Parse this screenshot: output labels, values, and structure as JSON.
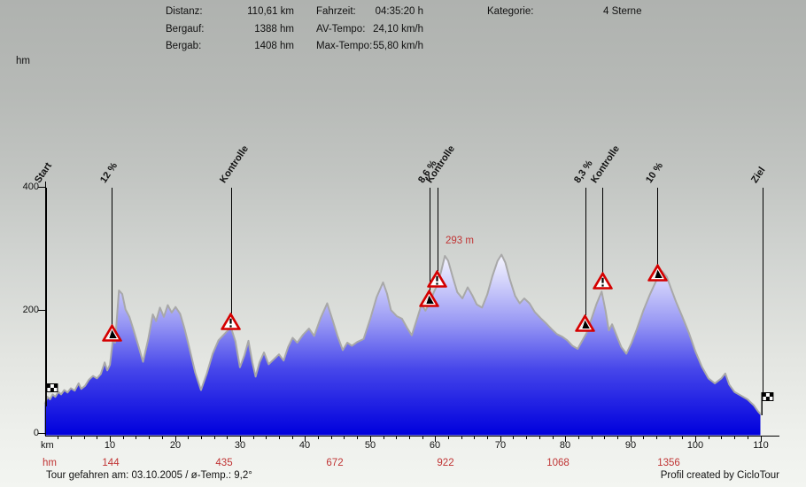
{
  "header": {
    "col1": [
      {
        "label": "Distanz:",
        "value": "110,61 km"
      },
      {
        "label": "Bergauf:",
        "value": "1388 hm"
      },
      {
        "label": "Bergab:",
        "value": "1408 hm"
      }
    ],
    "col2": [
      {
        "label": "Fahrzeit:",
        "value": "04:35:20 h"
      },
      {
        "label": "AV-Tempo:",
        "value": "24,10 km/h"
      },
      {
        "label": "Max-Tempo:",
        "value": "55,80 km/h"
      }
    ],
    "col3": [
      {
        "label": "Kategorie:",
        "value": "4 Sterne"
      }
    ]
  },
  "chart_data": {
    "type": "area",
    "title": "",
    "x_unit": "km",
    "y_unit": "hm",
    "xlim": [
      0,
      110
    ],
    "ylim": [
      0,
      400
    ],
    "y_ticks": [
      0,
      200,
      400
    ],
    "x_major_ticks": [
      10,
      20,
      30,
      40,
      50,
      60,
      70,
      80,
      90,
      100,
      110
    ],
    "x_minor_tick_step": 2,
    "series_name": "elevation-profile",
    "profile_points": [
      [
        0,
        46
      ],
      [
        0.4,
        58
      ],
      [
        0.8,
        54
      ],
      [
        1.2,
        62
      ],
      [
        1.6,
        58
      ],
      [
        2.1,
        66
      ],
      [
        2.5,
        62
      ],
      [
        3,
        69
      ],
      [
        3.5,
        65
      ],
      [
        4,
        72
      ],
      [
        4.6,
        68
      ],
      [
        5.2,
        80
      ],
      [
        5.6,
        71
      ],
      [
        6.2,
        76
      ],
      [
        6.8,
        86
      ],
      [
        7.4,
        92
      ],
      [
        8,
        88
      ],
      [
        8.6,
        95
      ],
      [
        9.2,
        114
      ],
      [
        9.6,
        101
      ],
      [
        10,
        110
      ],
      [
        10.45,
        150
      ],
      [
        10.8,
        146
      ],
      [
        11.4,
        231
      ],
      [
        11.9,
        225
      ],
      [
        12.4,
        200
      ],
      [
        13,
        188
      ],
      [
        13.6,
        168
      ],
      [
        14.4,
        140
      ],
      [
        15.1,
        115
      ],
      [
        15.9,
        152
      ],
      [
        16.6,
        192
      ],
      [
        17.1,
        181
      ],
      [
        17.7,
        203
      ],
      [
        18.3,
        188
      ],
      [
        18.9,
        207
      ],
      [
        19.5,
        195
      ],
      [
        20.1,
        204
      ],
      [
        20.8,
        193
      ],
      [
        21.5,
        168
      ],
      [
        22.2,
        138
      ],
      [
        23.1,
        98
      ],
      [
        24,
        69
      ],
      [
        24.9,
        96
      ],
      [
        25.8,
        128
      ],
      [
        26.7,
        150
      ],
      [
        27.6,
        160
      ],
      [
        28.6,
        171
      ],
      [
        29.3,
        148
      ],
      [
        30,
        106
      ],
      [
        30.7,
        126
      ],
      [
        31.3,
        149
      ],
      [
        31.9,
        114
      ],
      [
        32.4,
        91
      ],
      [
        33,
        114
      ],
      [
        33.7,
        130
      ],
      [
        34.4,
        111
      ],
      [
        35.2,
        119
      ],
      [
        36,
        127
      ],
      [
        36.7,
        117
      ],
      [
        37.4,
        139
      ],
      [
        38.1,
        154
      ],
      [
        38.8,
        146
      ],
      [
        39.7,
        159
      ],
      [
        40.6,
        169
      ],
      [
        41.4,
        157
      ],
      [
        42.4,
        186
      ],
      [
        43.4,
        210
      ],
      [
        44.2,
        184
      ],
      [
        45,
        157
      ],
      [
        45.8,
        134
      ],
      [
        46.5,
        146
      ],
      [
        47.2,
        141
      ],
      [
        48,
        147
      ],
      [
        49,
        152
      ],
      [
        50,
        184
      ],
      [
        51,
        220
      ],
      [
        52,
        244
      ],
      [
        52.6,
        226
      ],
      [
        53.2,
        199
      ],
      [
        54.1,
        189
      ],
      [
        54.9,
        185
      ],
      [
        55.7,
        170
      ],
      [
        56.4,
        158
      ],
      [
        57.2,
        184
      ],
      [
        57.9,
        208
      ],
      [
        58.5,
        198
      ],
      [
        59.2,
        211
      ],
      [
        59.8,
        228
      ],
      [
        60.3,
        239
      ],
      [
        60.9,
        261
      ],
      [
        61.5,
        287
      ],
      [
        62,
        279
      ],
      [
        62.7,
        253
      ],
      [
        63.4,
        228
      ],
      [
        64.2,
        218
      ],
      [
        65,
        236
      ],
      [
        65.7,
        223
      ],
      [
        66.4,
        208
      ],
      [
        67.2,
        203
      ],
      [
        68,
        224
      ],
      [
        68.8,
        254
      ],
      [
        69.6,
        279
      ],
      [
        70.2,
        289
      ],
      [
        70.8,
        276
      ],
      [
        71.5,
        248
      ],
      [
        72.3,
        222
      ],
      [
        73,
        210
      ],
      [
        73.7,
        218
      ],
      [
        74.5,
        210
      ],
      [
        75.3,
        196
      ],
      [
        76.2,
        186
      ],
      [
        77,
        178
      ],
      [
        77.9,
        168
      ],
      [
        78.7,
        160
      ],
      [
        79.5,
        156
      ],
      [
        80.3,
        150
      ],
      [
        81.1,
        141
      ],
      [
        81.9,
        136
      ],
      [
        82.7,
        151
      ],
      [
        83.3,
        162
      ],
      [
        84,
        184
      ],
      [
        84.8,
        209
      ],
      [
        85.6,
        229
      ],
      [
        86.2,
        198
      ],
      [
        86.7,
        166
      ],
      [
        87.2,
        176
      ],
      [
        87.8,
        160
      ],
      [
        88.6,
        139
      ],
      [
        89.4,
        128
      ],
      [
        90.2,
        146
      ],
      [
        91,
        168
      ],
      [
        92,
        198
      ],
      [
        93,
        224
      ],
      [
        94,
        247
      ],
      [
        94.9,
        262
      ],
      [
        95.6,
        253
      ],
      [
        96.3,
        233
      ],
      [
        97,
        213
      ],
      [
        98,
        188
      ],
      [
        99,
        162
      ],
      [
        100,
        132
      ],
      [
        101,
        107
      ],
      [
        102,
        88
      ],
      [
        103,
        80
      ],
      [
        104,
        88
      ],
      [
        104.6,
        96
      ],
      [
        105.2,
        78
      ],
      [
        106,
        66
      ],
      [
        107,
        60
      ],
      [
        108,
        54
      ],
      [
        109,
        44
      ],
      [
        109.6,
        35
      ],
      [
        110,
        30
      ]
    ],
    "markers": [
      {
        "label": "Start",
        "type": "start-flag",
        "km": 0.2,
        "foot_hm": 42
      },
      {
        "label": "12 %",
        "type": "climb",
        "km": 10.3,
        "foot_hm": 148
      },
      {
        "label": "Kontrolle",
        "type": "control",
        "km": 28.6,
        "foot_hm": 166
      },
      {
        "label": "8,6 %",
        "type": "climb",
        "km": 59.1,
        "foot_hm": 204
      },
      {
        "label": "Kontrolle",
        "type": "control",
        "km": 60.3,
        "foot_hm": 235
      },
      {
        "label": "8,3 %",
        "type": "climb",
        "km": 83.1,
        "foot_hm": 163
      },
      {
        "label": "Kontrolle",
        "type": "control",
        "km": 85.7,
        "foot_hm": 232
      },
      {
        "label": "10 %",
        "type": "climb",
        "km": 94.2,
        "foot_hm": 245
      },
      {
        "label": "Ziel",
        "type": "finish-flag",
        "km": 110.3,
        "foot_hm": 28
      }
    ],
    "peak_annotation": {
      "text": "293 m",
      "km": 61.7,
      "hm": 307
    },
    "cumulative_climb": {
      "label": "hm",
      "values": [
        {
          "text": "144",
          "km": 10.1
        },
        {
          "text": "435",
          "km": 27.6
        },
        {
          "text": "672",
          "km": 44.6
        },
        {
          "text": "922",
          "km": 61.6
        },
        {
          "text": "1068",
          "km": 78.9
        },
        {
          "text": "1356",
          "km": 95.9
        }
      ]
    },
    "colors": {
      "fill_bottom": "#0000dd",
      "fill_mid": "#4646ea",
      "fill_top": "#ffffff",
      "outline": "#a8a8a8",
      "marker_red": "#d40000",
      "value_red": "#c03434"
    }
  },
  "footer": {
    "left": "Tour gefahren am: 03.10.2005  /  ø-Temp.: 9,2°",
    "right": "Profil created by CicloTour"
  }
}
